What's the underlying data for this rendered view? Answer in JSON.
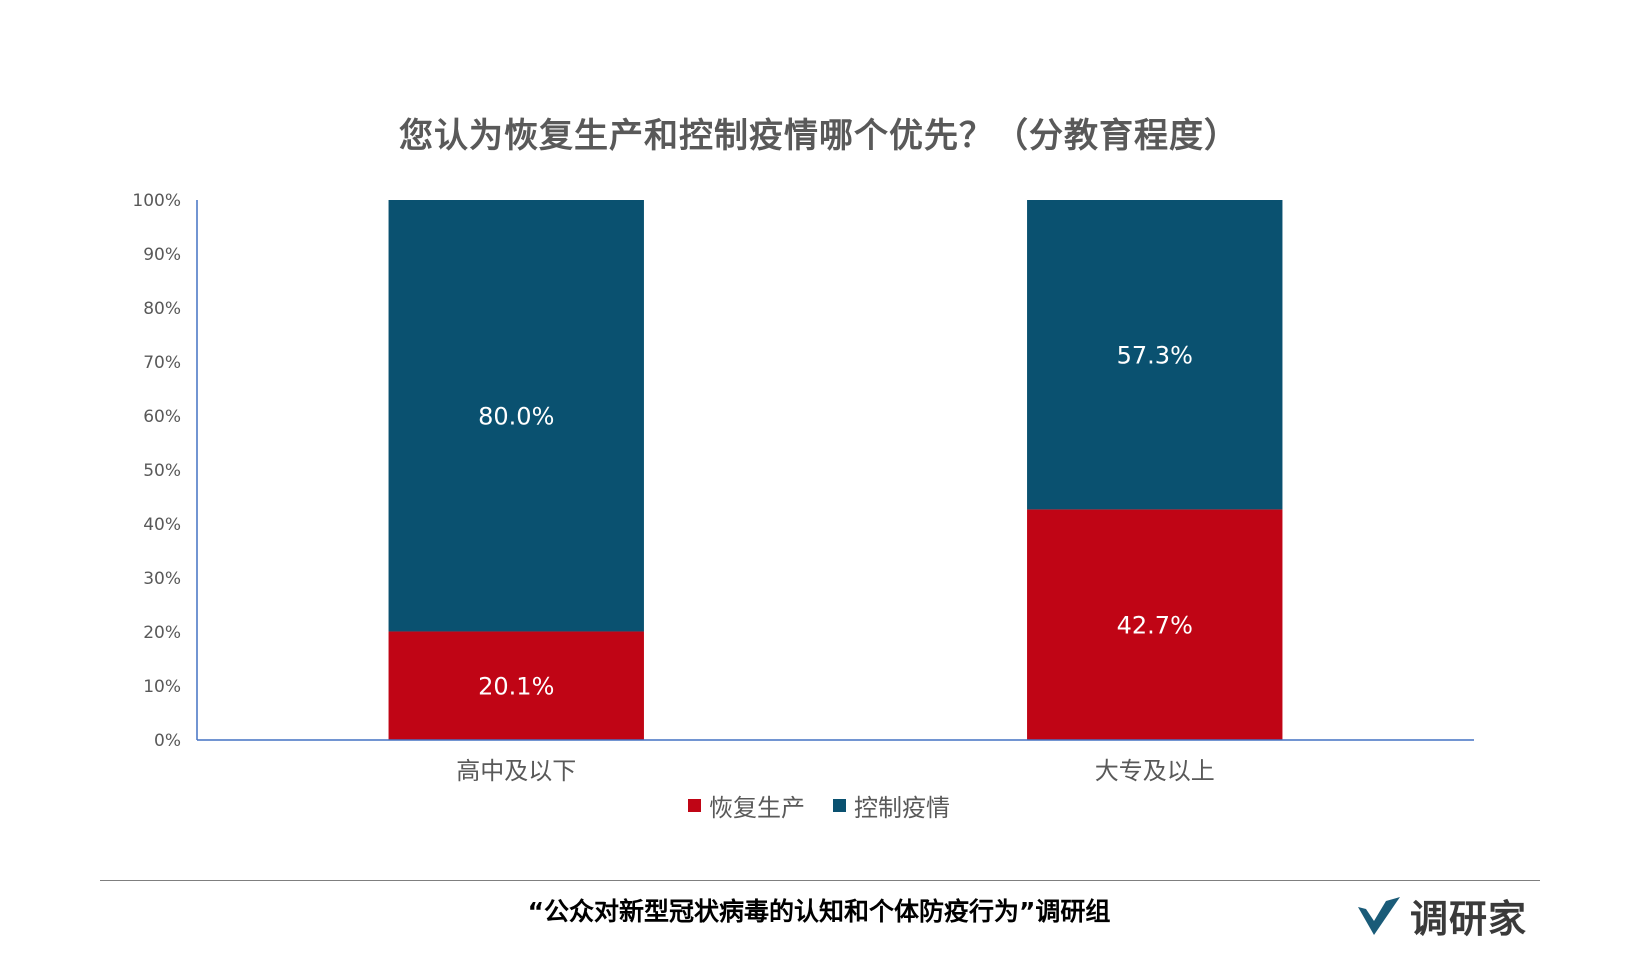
{
  "chart_data": {
    "type": "bar",
    "stacked": true,
    "title": "您认为恢复生产和控制疫情哪个优先？（分教育程度）",
    "categories": [
      "高中及以下",
      "大专及以上"
    ],
    "series": [
      {
        "name": "恢复生产",
        "values": [
          20.1,
          42.7
        ],
        "labels": [
          "20.1%",
          "42.7%"
        ],
        "color": "#c00515"
      },
      {
        "name": "控制疫情",
        "values": [
          80.0,
          57.3
        ],
        "labels": [
          "80.0%",
          "57.3%"
        ],
        "color": "#0a5170"
      }
    ],
    "ylim": [
      0,
      100
    ],
    "yticks": [
      "0%",
      "10%",
      "20%",
      "30%",
      "40%",
      "50%",
      "60%",
      "70%",
      "80%",
      "90%",
      "100%"
    ],
    "grid": false,
    "legend": "bottom"
  },
  "footer": {
    "text": "“公众对新型冠状病毒的认知和个体防疫行为”调研组"
  },
  "brand": {
    "name": "调研家",
    "icon": "v-check-logo-icon",
    "icon_color": "#1a5b78"
  },
  "colors": {
    "axis": "#4472c4",
    "text": "#595959"
  }
}
